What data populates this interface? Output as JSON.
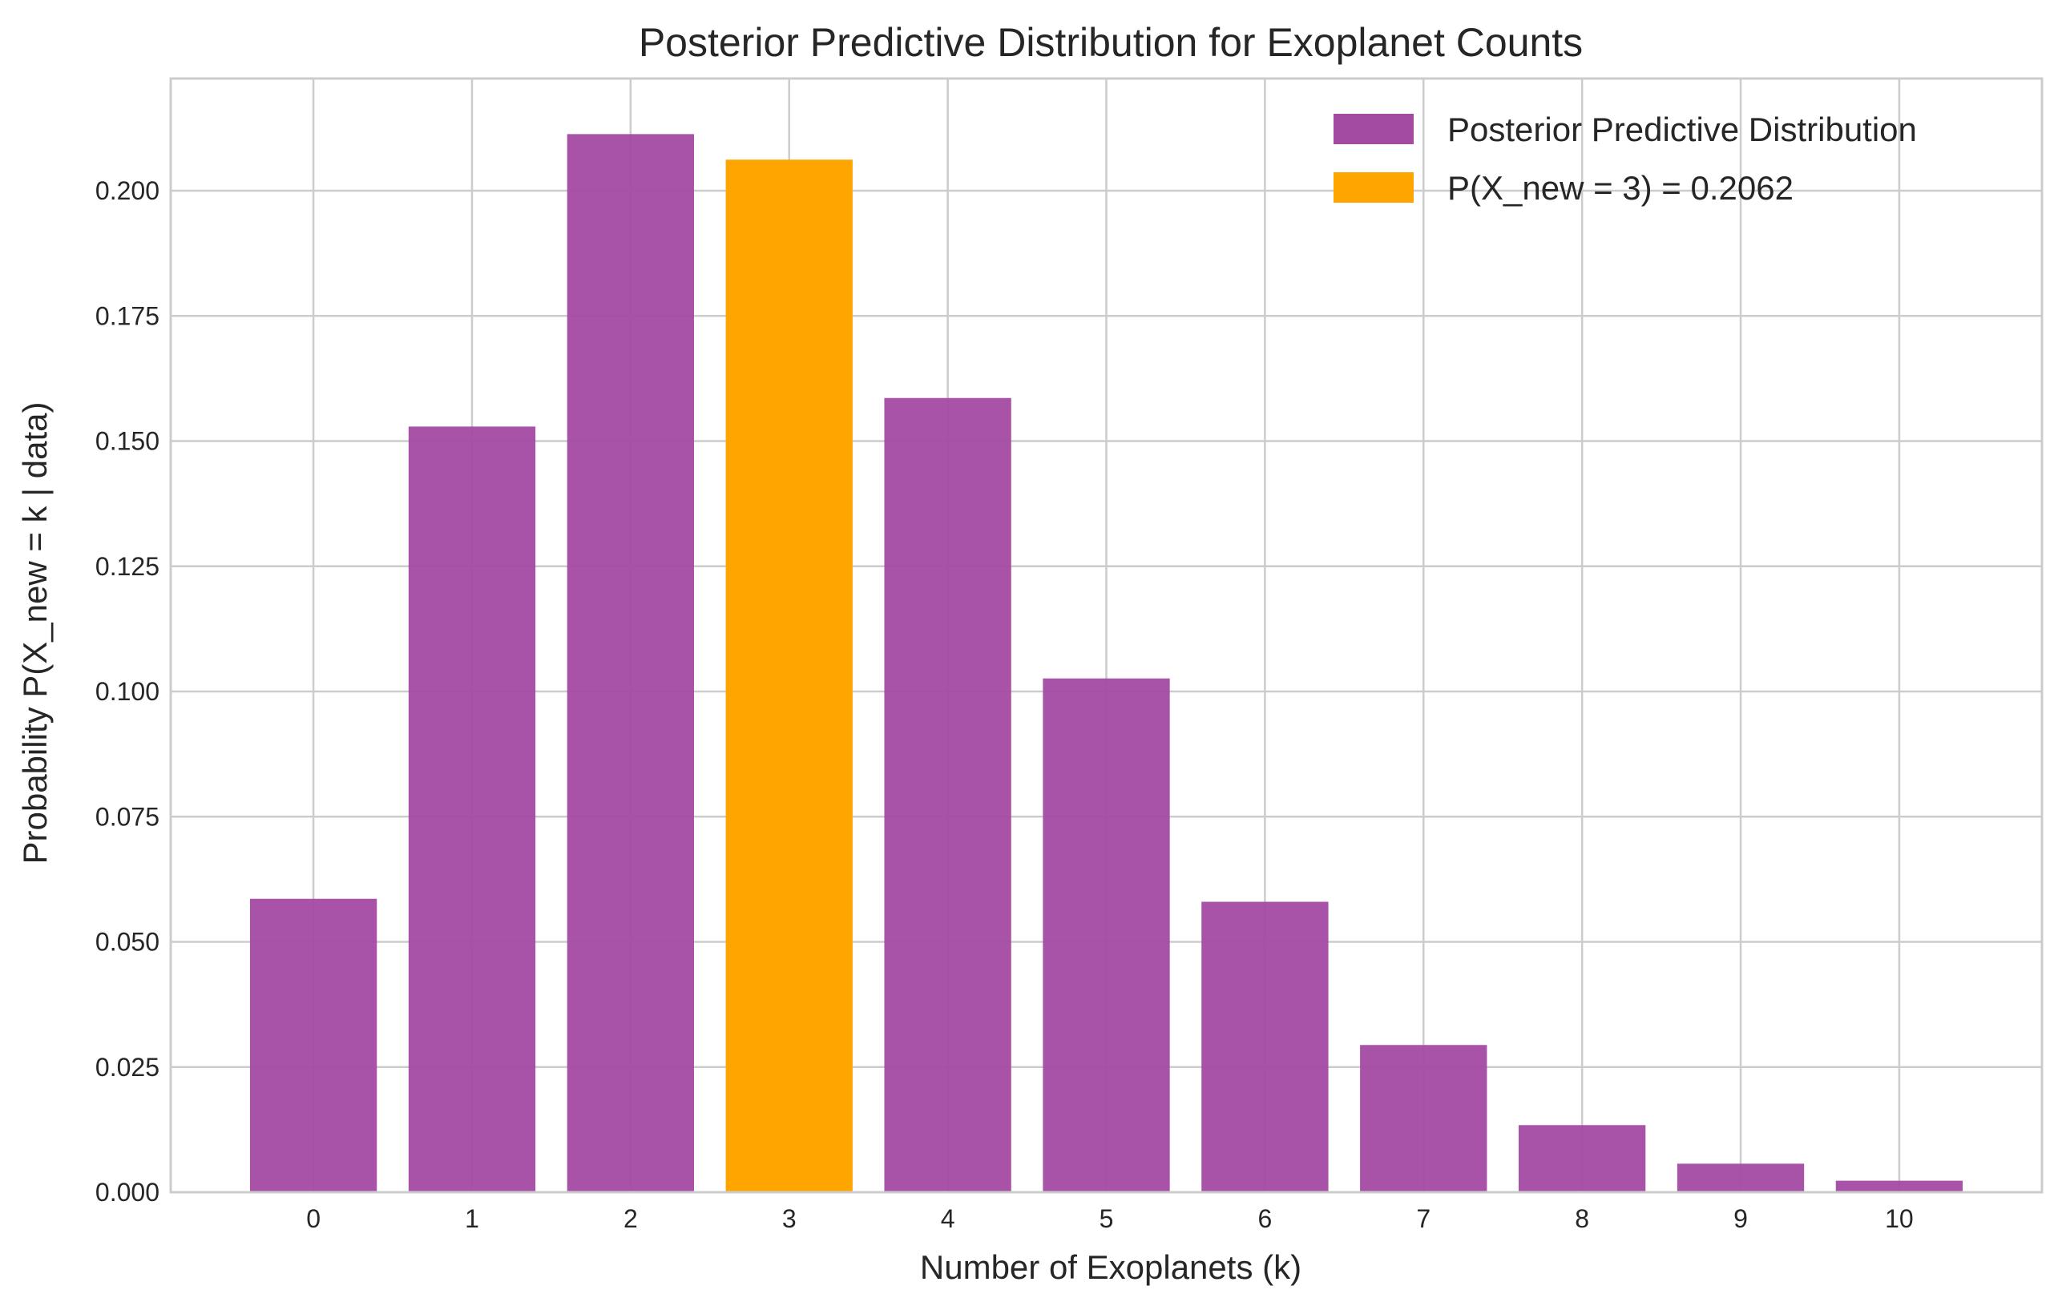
{
  "chart_data": {
    "type": "bar",
    "title": "Posterior Predictive Distribution for Exoplanet Counts",
    "xlabel": "Number of Exoplanets (k)",
    "ylabel": "Probability P(X_new = k | data)",
    "categories": [
      "0",
      "1",
      "2",
      "3",
      "4",
      "5",
      "6",
      "7",
      "8",
      "9",
      "10"
    ],
    "values": [
      0.0586,
      0.1529,
      0.2113,
      0.2062,
      0.1586,
      0.1026,
      0.058,
      0.0294,
      0.0134,
      0.0057,
      0.0023
    ],
    "highlight_index": 3,
    "ylim": [
      0,
      0.2224
    ],
    "xlim": [
      -0.9,
      10.9
    ],
    "yticks": [
      0.0,
      0.025,
      0.05,
      0.075,
      0.1,
      0.125,
      0.15,
      0.175,
      0.2
    ],
    "ytick_labels": [
      "0.000",
      "0.025",
      "0.050",
      "0.075",
      "0.100",
      "0.125",
      "0.150",
      "0.175",
      "0.200"
    ],
    "bar_width": 0.8,
    "grid": true,
    "legend_position": "top-right",
    "legend": [
      {
        "label": "Posterior Predictive Distribution",
        "color": "#a34aa3"
      },
      {
        "label": "P(X_new = 3) = 0.2062",
        "color": "#ffa500"
      }
    ],
    "colors": {
      "bar": "#a34aa3",
      "highlight": "#ffa500",
      "grid": "#cccccc",
      "text": "#262626"
    }
  }
}
